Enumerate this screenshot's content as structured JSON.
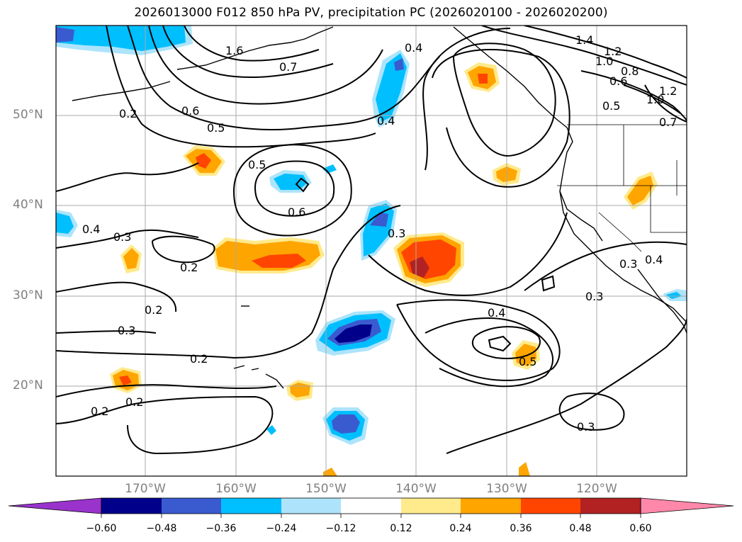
{
  "title": "2026013000 F012 850 hPa PV, precipitation PC (2026020100 - 2026020200)",
  "axes": {
    "lat_ticks": [
      "50°N",
      "40°N",
      "30°N",
      "20°N"
    ],
    "lon_ticks": [
      "170°W",
      "160°W",
      "150°W",
      "140°W",
      "130°W",
      "120°W"
    ]
  },
  "colorbar": {
    "labels": [
      "−0.60",
      "−0.48",
      "−0.36",
      "−0.24",
      "−0.12",
      "0.12",
      "0.24",
      "0.36",
      "0.48",
      "0.60"
    ],
    "colors": {
      "under": "#9933cc",
      "m048": "#00008b",
      "m036": "#3a5bd0",
      "m024": "#00bfff",
      "m012": "#ade4fb",
      "zero": "#ffffff",
      "p012": "#ffea8c",
      "p024": "#ffa500",
      "p036": "#ff4500",
      "p048": "#b22222",
      "over": "#ff88aa"
    }
  },
  "contour_labels": [
    "1.6",
    "0.7",
    "0.4",
    "1.4",
    "1.2",
    "1.0",
    "0.8",
    "0.6",
    "1.0",
    "1.2",
    "0.5",
    "0.7",
    "0.2",
    "0.6",
    "0.5",
    "0.4",
    "0.5",
    "0.6",
    "0.3",
    "0.4",
    "0.3",
    "0.2",
    "0.2",
    "0.3",
    "0.2",
    "0.2",
    "0.2",
    "0.4",
    "0.5",
    "0.3",
    "0.3",
    "0.4",
    "0.3"
  ]
}
